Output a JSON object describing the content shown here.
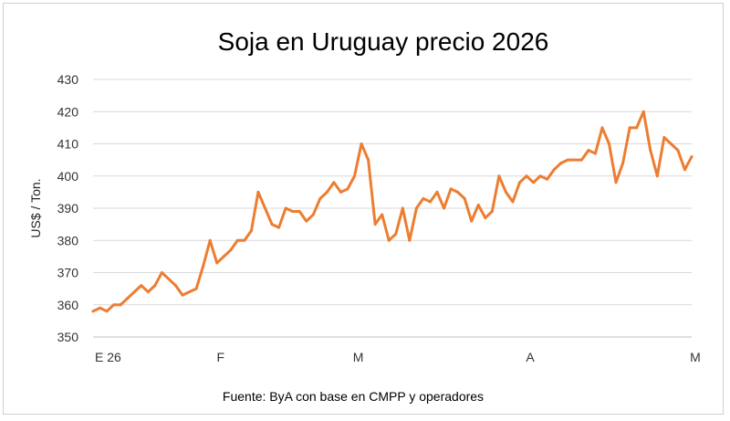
{
  "chart_data": {
    "type": "line",
    "title": "Soja en Uruguay precio 2026",
    "ylabel": "US$ / Ton.",
    "xlabel": "",
    "source": "Fuente: ByA con base en CMPP y operadores",
    "ylim": [
      350,
      430
    ],
    "yticks": [
      "350",
      "360",
      "370",
      "380",
      "390",
      "400",
      "410",
      "420",
      "430"
    ],
    "grid": true,
    "legend": "none",
    "line_color": "#ED7D31",
    "x_tick_labels": [
      {
        "label": "E 26",
        "index": 0
      },
      {
        "label": "F",
        "index": 18
      },
      {
        "label": "M",
        "index": 38
      },
      {
        "label": "A",
        "index": 63
      },
      {
        "label": "M",
        "index": 87
      }
    ],
    "series": [
      {
        "values": [
          358,
          359,
          358,
          360,
          360,
          362,
          364,
          366,
          364,
          366,
          370,
          368,
          366,
          363,
          364,
          365,
          372,
          380,
          373,
          375,
          377,
          380,
          380,
          383,
          395,
          390,
          385,
          384,
          390,
          389,
          389,
          386,
          388,
          393,
          395,
          398,
          395,
          396,
          400,
          410,
          405,
          385,
          388,
          380,
          382,
          390,
          380,
          390,
          393,
          392,
          395,
          390,
          396,
          395,
          393,
          386,
          391,
          387,
          389,
          400,
          395,
          392,
          398,
          400,
          398,
          400,
          399,
          402,
          404,
          405,
          405,
          405,
          408,
          407,
          415,
          410,
          398,
          404,
          415,
          415,
          420,
          408,
          400,
          412,
          410,
          408,
          402,
          406
        ]
      }
    ]
  }
}
